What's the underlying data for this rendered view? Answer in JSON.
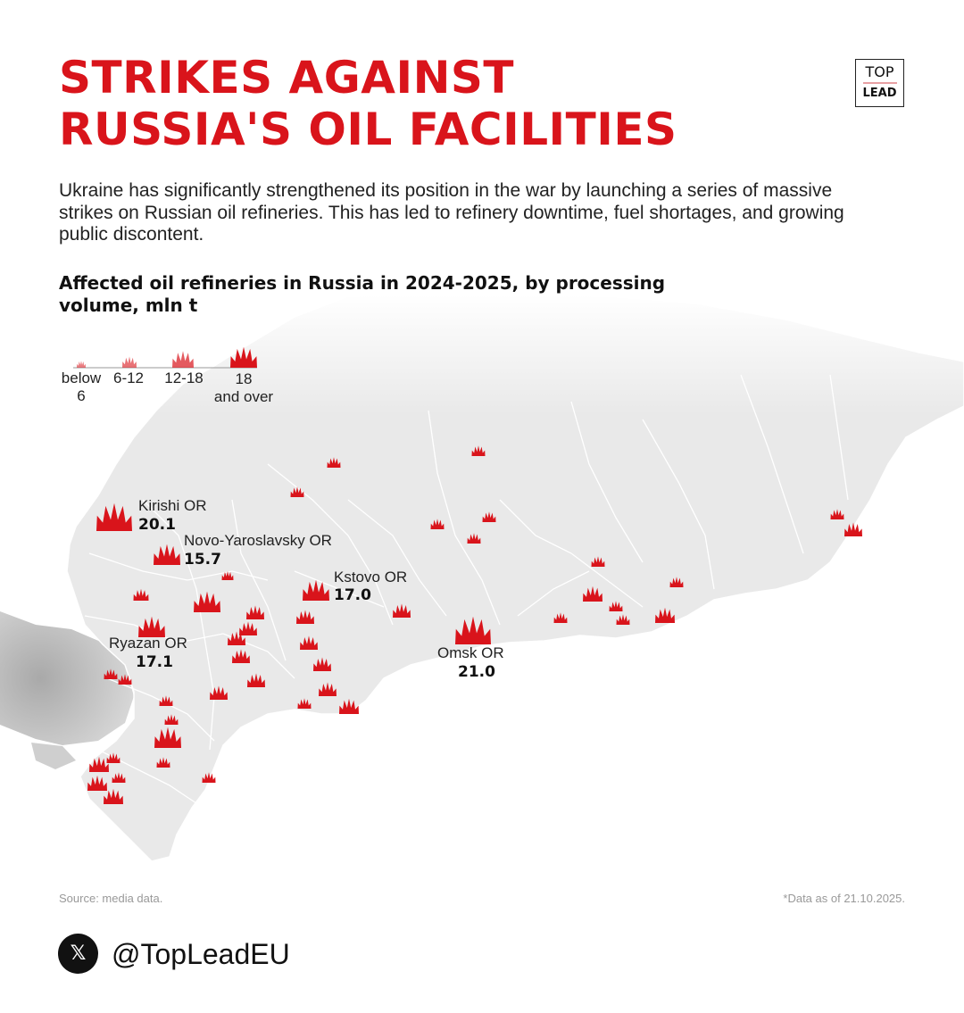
{
  "header": {
    "title": "STRIKES AGAINST\nRUSSIA'S OIL FACILITIES",
    "logo_top": "TOP",
    "logo_bottom": "LEAD"
  },
  "subtitle": "Ukraine has significantly strengthened its position in the war by launching a series of massive strikes on Russian oil refineries. This has led to refinery downtime, fuel shortages, and growing public discontent.",
  "chart_heading": "Affected oil refineries in Russia in 2024-2025, by processing volume, mln t",
  "legend": {
    "items": [
      {
        "label": "below\n6",
        "size": "small"
      },
      {
        "label": "6-12",
        "size": "medium"
      },
      {
        "label": "12-18",
        "size": "large"
      },
      {
        "label": "18\nand over",
        "size": "xlarge"
      }
    ]
  },
  "labeled_refineries": [
    {
      "name": "Kirishi OR",
      "value": "20.1"
    },
    {
      "name": "Novo-Yaroslavsky OR",
      "value": "15.7"
    },
    {
      "name": "Kstovo OR",
      "value": "17.0"
    },
    {
      "name": "Ryazan OR",
      "value": "17.1"
    },
    {
      "name": "Omsk OR",
      "value": "21.0"
    }
  ],
  "colors": {
    "accent": "#d9141b",
    "map_fill": "#e9e9e9",
    "border": "#ffffff",
    "neighbor": "#c4c4c4"
  },
  "footer": {
    "source": "Source: media data.",
    "as_of": "*Data as of 21.10.2025.",
    "social_icon": "x-logo-icon",
    "handle": "@TopLeadEU"
  }
}
